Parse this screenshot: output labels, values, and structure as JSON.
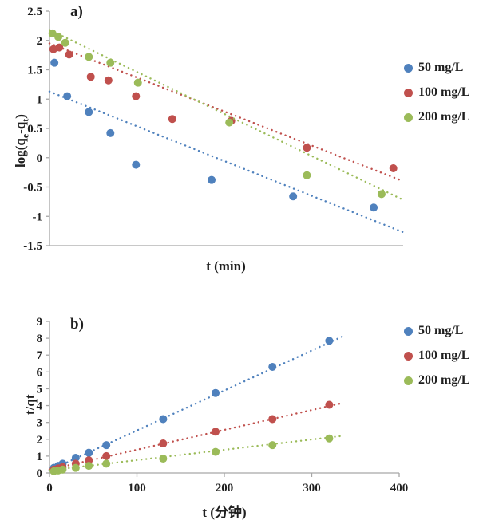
{
  "figure": {
    "background": "#ffffff",
    "axis_color": "#a6a6a6"
  },
  "chart_data": [
    {
      "type": "scatter",
      "panel_label": "a)",
      "xlabel": "t (min)",
      "ylabel": "log(qe-qt)",
      "ylabel_parts": [
        "log(q",
        "e",
        "-q",
        "t",
        ")"
      ],
      "xlim": [
        0,
        360
      ],
      "ylim": [
        -1.5,
        2.5
      ],
      "xticks": [],
      "yticks": [
        2.5,
        2,
        1.5,
        1,
        0.5,
        0,
        -0.5,
        -1,
        -1.5
      ],
      "grid": false,
      "legend_position": "right",
      "series": [
        {
          "name": "50 mg/L",
          "color": "#4f81bd",
          "points": [
            [
              5,
              1.62
            ],
            [
              18,
              1.05
            ],
            [
              40,
              0.78
            ],
            [
              62,
              0.42
            ],
            [
              88,
              -0.12
            ],
            [
              165,
              -0.38
            ],
            [
              248,
              -0.66
            ],
            [
              330,
              -0.85
            ]
          ],
          "trend": [
            [
              0,
              1.13
            ],
            [
              360,
              -1.27
            ]
          ]
        },
        {
          "name": "100 mg/L",
          "color": "#c0504d",
          "points": [
            [
              4,
              1.85
            ],
            [
              10,
              1.88
            ],
            [
              20,
              1.76
            ],
            [
              42,
              1.38
            ],
            [
              60,
              1.32
            ],
            [
              88,
              1.05
            ],
            [
              125,
              0.66
            ],
            [
              185,
              0.63
            ],
            [
              262,
              0.17
            ],
            [
              350,
              -0.18
            ]
          ],
          "trend": [
            [
              0,
              1.95
            ],
            [
              360,
              -0.4
            ]
          ]
        },
        {
          "name": "200 mg/L",
          "color": "#9bbb59",
          "points": [
            [
              3,
              2.12
            ],
            [
              9,
              2.06
            ],
            [
              16,
              1.96
            ],
            [
              40,
              1.72
            ],
            [
              62,
              1.62
            ],
            [
              90,
              1.28
            ],
            [
              183,
              0.6
            ],
            [
              262,
              -0.3
            ],
            [
              338,
              -0.62
            ]
          ],
          "trend": [
            [
              0,
              2.18
            ],
            [
              360,
              -0.72
            ]
          ]
        }
      ]
    },
    {
      "type": "scatter",
      "panel_label": "b)",
      "xlabel": "t (分钟)",
      "ylabel": "t/qt",
      "xlim": [
        0,
        400
      ],
      "ylim": [
        0,
        9
      ],
      "xticks": [
        0,
        100,
        200,
        300,
        400
      ],
      "yticks": [
        0,
        1,
        2,
        3,
        4,
        5,
        6,
        7,
        8,
        9
      ],
      "grid": false,
      "legend_position": "right",
      "series": [
        {
          "name": "50 mg/L",
          "color": "#4f81bd",
          "points": [
            [
              5,
              0.3
            ],
            [
              10,
              0.42
            ],
            [
              15,
              0.55
            ],
            [
              30,
              0.9
            ],
            [
              45,
              1.2
            ],
            [
              65,
              1.65
            ],
            [
              130,
              3.2
            ],
            [
              190,
              4.75
            ],
            [
              255,
              6.3
            ],
            [
              320,
              7.85
            ]
          ],
          "trend": [
            [
              0,
              0.15
            ],
            [
              335,
              8.1
            ]
          ]
        },
        {
          "name": "100 mg/L",
          "color": "#c0504d",
          "points": [
            [
              5,
              0.2
            ],
            [
              10,
              0.27
            ],
            [
              15,
              0.35
            ],
            [
              30,
              0.55
            ],
            [
              45,
              0.75
            ],
            [
              65,
              1.0
            ],
            [
              130,
              1.75
            ],
            [
              190,
              2.45
            ],
            [
              255,
              3.2
            ],
            [
              320,
              4.05
            ]
          ],
          "trend": [
            [
              0,
              0.2
            ],
            [
              335,
              4.15
            ]
          ]
        },
        {
          "name": "200 mg/L",
          "color": "#9bbb59",
          "points": [
            [
              5,
              0.1
            ],
            [
              10,
              0.15
            ],
            [
              15,
              0.2
            ],
            [
              30,
              0.3
            ],
            [
              45,
              0.42
            ],
            [
              65,
              0.55
            ],
            [
              130,
              0.85
            ],
            [
              190,
              1.25
            ],
            [
              255,
              1.65
            ],
            [
              320,
              2.05
            ]
          ],
          "trend": [
            [
              0,
              0.15
            ],
            [
              335,
              2.2
            ]
          ]
        }
      ]
    }
  ]
}
